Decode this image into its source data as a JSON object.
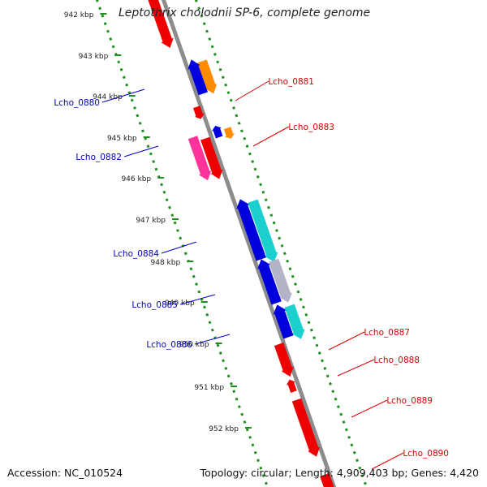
{
  "title": "Leptothrix cholodnii SP-6, complete genome",
  "footer": {
    "accession": "Accession: NC_010524",
    "summary": "Topology: circular; Length: 4,909,403 bp; Genes: 4,420"
  },
  "colors": {
    "backbone": "#8c8c8c",
    "dotted_track": "#1f8f1f",
    "label_forward": "#0000c8",
    "label_reverse": "#dd0000",
    "gene_red": "#ee0000",
    "gene_blue": "#0000dd",
    "gene_orange": "#ff8c00",
    "gene_cyan": "#1ccfcf",
    "gene_pink": "#ff3399",
    "gene_gray": "#b4b4c8"
  },
  "kbp_ticks": [
    "942 kbp",
    "943 kbp",
    "944 kbp",
    "945 kbp",
    "946 kbp",
    "947 kbp",
    "948 kbp",
    "949 kbp",
    "950 kbp",
    "951 kbp",
    "952 kbp"
  ],
  "gene_labels": [
    {
      "text": "Lcho_0880",
      "side": "left"
    },
    {
      "text": "Lcho_0881",
      "side": "right"
    },
    {
      "text": "Lcho_0882",
      "side": "left"
    },
    {
      "text": "Lcho_0883",
      "side": "right"
    },
    {
      "text": "Lcho_0884",
      "side": "left"
    },
    {
      "text": "Lcho_0885",
      "side": "left"
    },
    {
      "text": "Lcho_0886",
      "side": "left"
    },
    {
      "text": "Lcho_0887",
      "side": "right"
    },
    {
      "text": "Lcho_0888",
      "side": "right"
    },
    {
      "text": "Lcho_0889",
      "side": "right"
    },
    {
      "text": "Lcho_0890",
      "side": "right"
    }
  ]
}
